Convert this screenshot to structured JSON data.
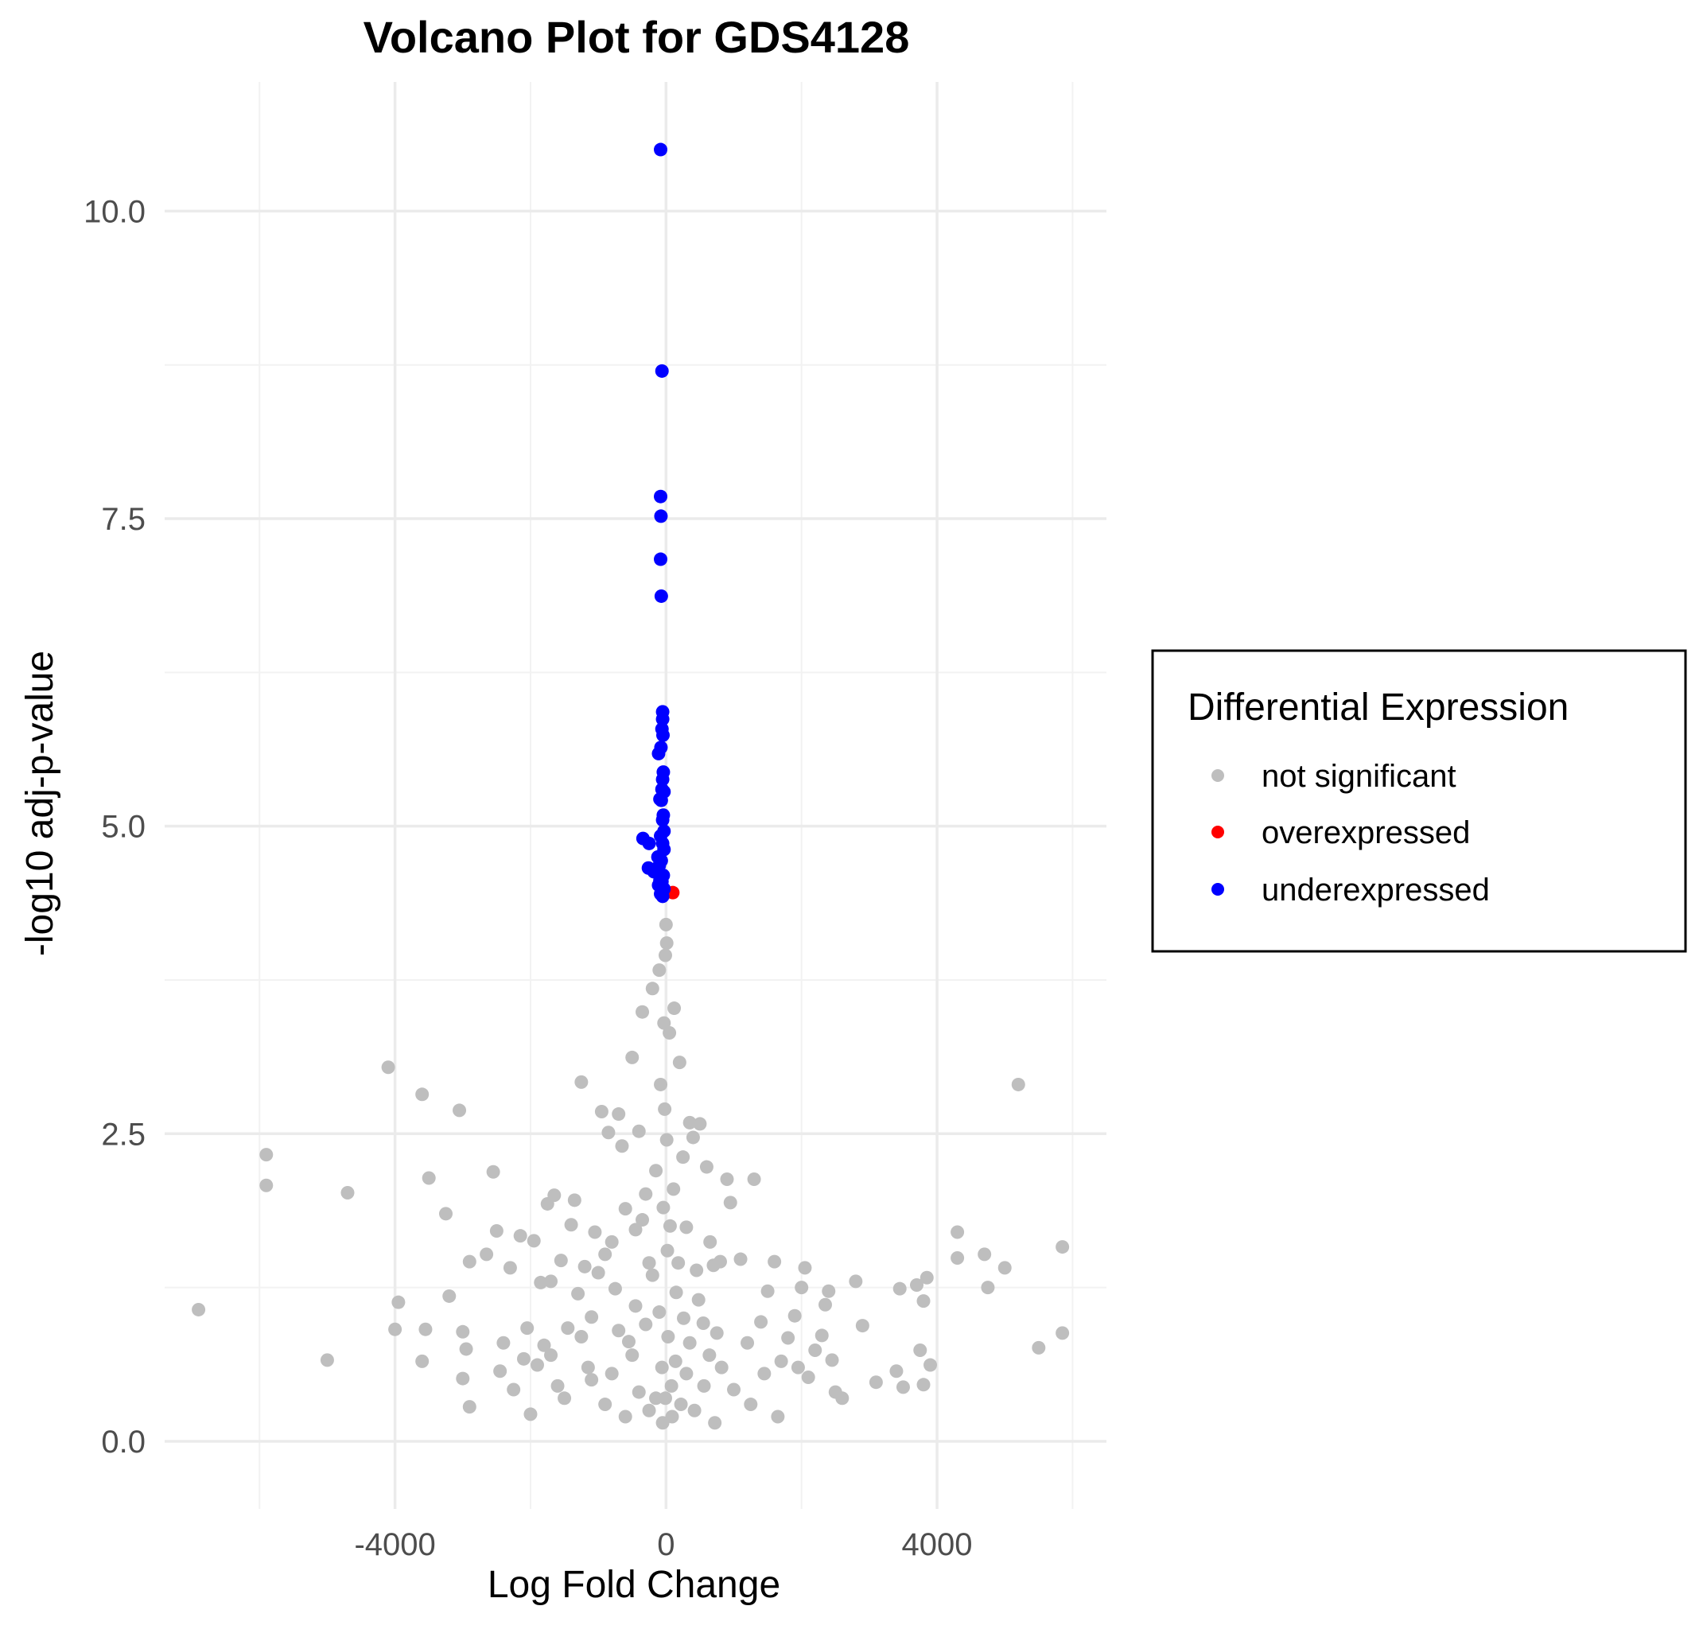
{
  "chart_data": {
    "type": "scatter",
    "title": "Volcano Plot for GDS4128",
    "xlabel": "Log Fold Change",
    "ylabel": "-log10 adj-p-value",
    "xlim": [
      -7400,
      6500
    ],
    "ylim": [
      -0.55,
      11.05
    ],
    "x_ticks": [
      -4000,
      0,
      4000
    ],
    "x_tick_labels": [
      "-4000",
      "0",
      "4000"
    ],
    "x_minor_ticks": [
      -6000,
      -2000,
      2000,
      6000
    ],
    "y_ticks": [
      0,
      2.5,
      5,
      7.5,
      10
    ],
    "y_tick_labels": [
      "0.0",
      "2.5",
      "5.0",
      "7.5",
      "10.0"
    ],
    "y_minor_ticks": [
      1.25,
      3.75,
      6.25,
      8.75
    ],
    "grid": true,
    "legend": {
      "title": "Differential Expression",
      "position": "right",
      "entries": [
        {
          "label": "not significant",
          "color": "#bebebe"
        },
        {
          "label": "overexpressed",
          "color": "#ff0000"
        },
        {
          "label": "underexpressed",
          "color": "#0000ff"
        }
      ]
    },
    "series": [
      {
        "name": "not significant",
        "color": "#bebebe",
        "points": [
          [
            -6900,
            1.07
          ],
          [
            -5900,
            2.33
          ],
          [
            -5900,
            2.08
          ],
          [
            -5000,
            0.66
          ],
          [
            -4700,
            2.02
          ],
          [
            -4100,
            3.04
          ],
          [
            -4000,
            0.91
          ],
          [
            -3950,
            1.13
          ],
          [
            -3600,
            2.82
          ],
          [
            -3550,
            0.91
          ],
          [
            -3500,
            2.14
          ],
          [
            -3600,
            0.65
          ],
          [
            -3250,
            1.85
          ],
          [
            -3200,
            1.18
          ],
          [
            -3050,
            2.69
          ],
          [
            -3000,
            0.89
          ],
          [
            -3000,
            0.51
          ],
          [
            -2950,
            0.75
          ],
          [
            -2900,
            0.28
          ],
          [
            -2900,
            1.46
          ],
          [
            -2650,
            1.52
          ],
          [
            -2550,
            2.19
          ],
          [
            -2500,
            1.71
          ],
          [
            -2450,
            0.57
          ],
          [
            -2300,
            1.41
          ],
          [
            -2400,
            0.8
          ],
          [
            -2250,
            0.42
          ],
          [
            -2150,
            1.67
          ],
          [
            -2100,
            0.67
          ],
          [
            -2050,
            0.92
          ],
          [
            -2000,
            0.22
          ],
          [
            -1950,
            1.63
          ],
          [
            -1900,
            0.62
          ],
          [
            -1850,
            1.29
          ],
          [
            -1800,
            0.78
          ],
          [
            -1750,
            1.93
          ],
          [
            -1700,
            1.3
          ],
          [
            -1650,
            2.0
          ],
          [
            -1600,
            0.45
          ],
          [
            -1550,
            1.47
          ],
          [
            -1450,
            0.92
          ],
          [
            -1400,
            1.76
          ],
          [
            -1350,
            1.96
          ],
          [
            -1300,
            1.2
          ],
          [
            -1250,
            2.92
          ],
          [
            -1200,
            1.42
          ],
          [
            -1150,
            0.6
          ],
          [
            -1100,
            1.01
          ],
          [
            -1050,
            1.7
          ],
          [
            -1000,
            1.37
          ],
          [
            -950,
            2.68
          ],
          [
            -900,
            1.52
          ],
          [
            -850,
            2.51
          ],
          [
            -800,
            1.62
          ],
          [
            -750,
            1.24
          ],
          [
            -700,
            2.66
          ],
          [
            -650,
            2.4
          ],
          [
            -600,
            1.89
          ],
          [
            -550,
            0.81
          ],
          [
            -500,
            3.12
          ],
          [
            -450,
            1.72
          ],
          [
            -400,
            2.52
          ],
          [
            -350,
            3.49
          ],
          [
            -300,
            2.01
          ],
          [
            -250,
            1.45
          ],
          [
            -200,
            3.68
          ],
          [
            -150,
            0.35
          ],
          [
            -100,
            3.83
          ],
          [
            -50,
            0.15
          ],
          [
            0,
            4.2
          ],
          [
            -20,
            2.7
          ],
          [
            20,
            1.55
          ],
          [
            50,
            3.32
          ],
          [
            80,
            0.45
          ],
          [
            120,
            3.52
          ],
          [
            150,
            1.21
          ],
          [
            200,
            3.08
          ],
          [
            250,
            2.31
          ],
          [
            300,
            1.74
          ],
          [
            350,
            2.59
          ],
          [
            400,
            2.47
          ],
          [
            450,
            1.39
          ],
          [
            500,
            2.58
          ],
          [
            550,
            0.96
          ],
          [
            600,
            2.23
          ],
          [
            650,
            1.62
          ],
          [
            700,
            1.43
          ],
          [
            750,
            0.88
          ],
          [
            800,
            1.46
          ],
          [
            900,
            2.13
          ],
          [
            950,
            1.94
          ],
          [
            1000,
            0.42
          ],
          [
            1100,
            1.48
          ],
          [
            1200,
            0.8
          ],
          [
            1300,
            2.13
          ],
          [
            1400,
            0.97
          ],
          [
            1500,
            1.22
          ],
          [
            1600,
            1.46
          ],
          [
            1700,
            0.65
          ],
          [
            1800,
            0.84
          ],
          [
            1900,
            1.02
          ],
          [
            2000,
            1.25
          ],
          [
            2050,
            1.41
          ],
          [
            2100,
            0.52
          ],
          [
            2200,
            0.74
          ],
          [
            2300,
            0.86
          ],
          [
            2350,
            1.11
          ],
          [
            2400,
            1.22
          ],
          [
            2450,
            0.66
          ],
          [
            2500,
            0.4
          ],
          [
            2600,
            0.35
          ],
          [
            2800,
            1.3
          ],
          [
            2900,
            0.94
          ],
          [
            3100,
            0.48
          ],
          [
            3400,
            0.57
          ],
          [
            3450,
            1.24
          ],
          [
            3500,
            0.44
          ],
          [
            3700,
            1.27
          ],
          [
            3750,
            0.74
          ],
          [
            3800,
            1.14
          ],
          [
            3850,
            1.33
          ],
          [
            3800,
            0.46
          ],
          [
            3900,
            0.62
          ],
          [
            4300,
            1.7
          ],
          [
            4300,
            1.49
          ],
          [
            4700,
            1.52
          ],
          [
            4750,
            1.25
          ],
          [
            5000,
            1.41
          ],
          [
            5200,
            2.9
          ],
          [
            5500,
            0.76
          ],
          [
            5850,
            1.58
          ],
          [
            5850,
            0.88
          ],
          [
            -900,
            0.3
          ],
          [
            -800,
            0.55
          ],
          [
            -700,
            0.9
          ],
          [
            -600,
            0.2
          ],
          [
            -500,
            0.7
          ],
          [
            -450,
            1.1
          ],
          [
            -400,
            0.4
          ],
          [
            -350,
            1.8
          ],
          [
            -300,
            0.95
          ],
          [
            -250,
            0.25
          ],
          [
            -200,
            1.35
          ],
          [
            -150,
            2.2
          ],
          [
            -100,
            1.05
          ],
          [
            -80,
            2.9
          ],
          [
            -60,
            0.6
          ],
          [
            -40,
            1.9
          ],
          [
            -30,
            3.4
          ],
          [
            -10,
            0.35
          ],
          [
            10,
            2.45
          ],
          [
            30,
            0.85
          ],
          [
            60,
            1.75
          ],
          [
            90,
            0.2
          ],
          [
            110,
            2.05
          ],
          [
            140,
            0.65
          ],
          [
            180,
            1.45
          ],
          [
            220,
            0.3
          ],
          [
            260,
            1.0
          ],
          [
            300,
            0.55
          ],
          [
            350,
            0.8
          ],
          [
            420,
            0.25
          ],
          [
            480,
            1.15
          ],
          [
            560,
            0.45
          ],
          [
            640,
            0.7
          ],
          [
            720,
            0.15
          ],
          [
            820,
            0.6
          ],
          [
            -1100,
            0.5
          ],
          [
            -1250,
            0.85
          ],
          [
            -1500,
            0.35
          ],
          [
            -1700,
            0.7
          ],
          [
            1250,
            0.3
          ],
          [
            1450,
            0.55
          ],
          [
            1650,
            0.2
          ],
          [
            1950,
            0.6
          ],
          [
            -10,
            3.95
          ],
          [
            10,
            4.05
          ]
        ]
      },
      {
        "name": "overexpressed",
        "color": "#ff0000",
        "points": [
          [
            100,
            4.46
          ]
        ]
      },
      {
        "name": "underexpressed",
        "color": "#0000ff",
        "points": [
          [
            -80,
            10.5
          ],
          [
            -60,
            8.7
          ],
          [
            -80,
            7.68
          ],
          [
            -75,
            7.52
          ],
          [
            -80,
            7.17
          ],
          [
            -70,
            6.87
          ],
          [
            -50,
            5.93
          ],
          [
            -50,
            5.87
          ],
          [
            -60,
            5.79
          ],
          [
            -45,
            5.74
          ],
          [
            -75,
            5.64
          ],
          [
            -110,
            5.59
          ],
          [
            -40,
            5.44
          ],
          [
            -50,
            5.38
          ],
          [
            -60,
            5.3
          ],
          [
            -30,
            5.28
          ],
          [
            -70,
            5.21
          ],
          [
            -90,
            5.22
          ],
          [
            -40,
            5.09
          ],
          [
            -50,
            5.05
          ],
          [
            -30,
            4.96
          ],
          [
            -80,
            4.92
          ],
          [
            -340,
            4.9
          ],
          [
            -250,
            4.86
          ],
          [
            -50,
            4.86
          ],
          [
            -30,
            4.81
          ],
          [
            -120,
            4.75
          ],
          [
            -70,
            4.72
          ],
          [
            -100,
            4.68
          ],
          [
            -260,
            4.66
          ],
          [
            -180,
            4.63
          ],
          [
            -40,
            4.6
          ],
          [
            -90,
            4.56
          ],
          [
            -60,
            4.55
          ],
          [
            -110,
            4.52
          ],
          [
            -30,
            4.49
          ],
          [
            -80,
            4.45
          ],
          [
            -50,
            4.43
          ]
        ]
      }
    ]
  }
}
